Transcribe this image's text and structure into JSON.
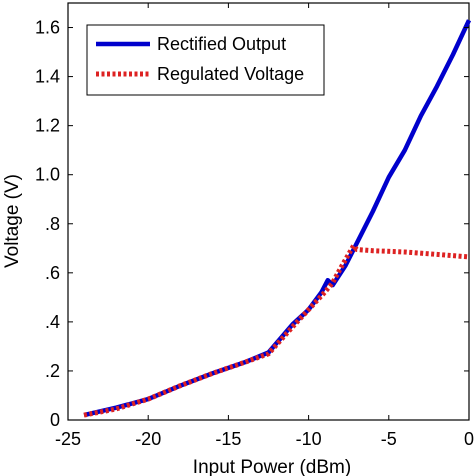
{
  "chart_data": {
    "type": "line",
    "title": "",
    "xlabel": "Input Power (dBm)",
    "ylabel": "Voltage (V)",
    "xlim": [
      -25,
      0
    ],
    "ylim": [
      0,
      1.7
    ],
    "grid": false,
    "legend_position": "top-left",
    "x_ticks": [
      -25,
      -20,
      -15,
      -10,
      -5,
      0
    ],
    "x_tick_labels": [
      "-25",
      "-20",
      "-15",
      "-10",
      "-5",
      "0"
    ],
    "y_ticks": [
      0,
      0.2,
      0.4,
      0.6,
      0.8,
      1.0,
      1.2,
      1.4,
      1.6
    ],
    "y_tick_labels": [
      "0",
      ".2",
      ".4",
      ".6",
      ".8",
      "1.0",
      "1.2",
      "1.4",
      "1.6"
    ],
    "series": [
      {
        "name": "Rectified Output",
        "color": "#0000cc",
        "style": "solid",
        "x": [
          -24,
          -22,
          -20,
          -18,
          -16,
          -14,
          -12.5,
          -11,
          -10,
          -9.2,
          -8.8,
          -8.5,
          -7.7,
          -7,
          -6,
          -5,
          -4,
          -3,
          -2,
          -1,
          0
        ],
        "y": [
          0.02,
          0.05,
          0.085,
          0.14,
          0.19,
          0.235,
          0.275,
          0.39,
          0.45,
          0.52,
          0.57,
          0.55,
          0.63,
          0.72,
          0.85,
          0.99,
          1.1,
          1.24,
          1.36,
          1.49,
          1.63
        ]
      },
      {
        "name": "Regulated Voltage",
        "color": "#dd2222",
        "style": "dotted",
        "x": [
          -24,
          -22,
          -20,
          -18,
          -16,
          -14,
          -12.5,
          -11,
          -10,
          -9,
          -8.5,
          -8,
          -7.2,
          -7,
          -6,
          -4,
          -2,
          0
        ],
        "y": [
          0.02,
          0.045,
          0.085,
          0.14,
          0.19,
          0.235,
          0.27,
          0.38,
          0.45,
          0.52,
          0.56,
          0.62,
          0.71,
          0.695,
          0.69,
          0.685,
          0.675,
          0.665
        ]
      }
    ]
  }
}
